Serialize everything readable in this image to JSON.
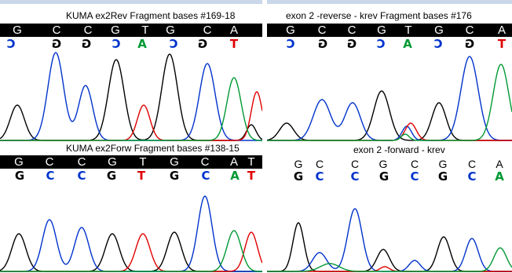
{
  "panels": {
    "top_left": {
      "title": "KUMA ex2Rev Fragment bases #169-18",
      "sequence": [
        "G",
        "C",
        "C",
        "G",
        "T",
        "G",
        "C",
        "A"
      ],
      "calls": [
        {
          "letter": "C",
          "color": "#0033cc",
          "flip": true
        },
        {
          "letter": "G",
          "color": "#000000",
          "flip": true
        },
        {
          "letter": "G",
          "color": "#000000",
          "flip": true
        },
        {
          "letter": "C",
          "color": "#0033cc",
          "flip": true
        },
        {
          "letter": "A",
          "color": "#009933",
          "flip": false
        },
        {
          "letter": "C",
          "color": "#0033cc",
          "flip": true
        },
        {
          "letter": "G",
          "color": "#000000",
          "flip": true
        },
        {
          "letter": "T",
          "color": "#e00000",
          "flip": false
        }
      ]
    },
    "top_right": {
      "title": "exon 2 -reverse - krev Fragment bases #176",
      "sequence": [
        "G",
        "C",
        "C",
        "G",
        "T",
        "G",
        "C",
        "A"
      ],
      "calls": [
        {
          "letter": "C",
          "color": "#0033cc",
          "flip": true
        },
        {
          "letter": "G",
          "color": "#000000",
          "flip": true
        },
        {
          "letter": "G",
          "color": "#000000",
          "flip": true
        },
        {
          "letter": "C",
          "color": "#0033cc",
          "flip": true
        },
        {
          "letter": "A",
          "color": "#009933",
          "flip": false
        },
        {
          "letter": "C",
          "color": "#0033cc",
          "flip": true
        },
        {
          "letter": "G",
          "color": "#000000",
          "flip": true
        },
        {
          "letter": "T",
          "color": "#e00000",
          "flip": false
        }
      ]
    },
    "bottom_left": {
      "title": "KUMA ex2Forw Fragment bases #138-15",
      "sequence": [
        "G",
        "C",
        "C",
        "G",
        "T",
        "G",
        "C",
        "A",
        "T"
      ],
      "calls": [
        {
          "letter": "G",
          "color": "#000000",
          "flip": false
        },
        {
          "letter": "C",
          "color": "#0033cc",
          "flip": false
        },
        {
          "letter": "C",
          "color": "#0033cc",
          "flip": false
        },
        {
          "letter": "G",
          "color": "#000000",
          "flip": false
        },
        {
          "letter": "T",
          "color": "#e00000",
          "flip": false
        },
        {
          "letter": "G",
          "color": "#000000",
          "flip": false
        },
        {
          "letter": "C",
          "color": "#0033cc",
          "flip": false
        },
        {
          "letter": "A",
          "color": "#009933",
          "flip": false
        },
        {
          "letter": "T",
          "color": "#e00000",
          "flip": false
        }
      ]
    },
    "bottom_right": {
      "title": "exon 2 -forward - krev",
      "sequence": [
        "G",
        "C",
        "C",
        "G",
        "C",
        "G",
        "C",
        "A"
      ],
      "calls": [
        {
          "letter": "G",
          "color": "#000000",
          "flip": false
        },
        {
          "letter": "C",
          "color": "#0033cc",
          "flip": false
        },
        {
          "letter": "C",
          "color": "#0033cc",
          "flip": false
        },
        {
          "letter": "G",
          "color": "#000000",
          "flip": false
        },
        {
          "letter": "C",
          "color": "#0033cc",
          "flip": false
        },
        {
          "letter": "G",
          "color": "#000000",
          "flip": false
        },
        {
          "letter": "C",
          "color": "#0033cc",
          "flip": false
        },
        {
          "letter": "A",
          "color": "#009933",
          "flip": false
        }
      ]
    }
  },
  "colors": {
    "A": "#009933",
    "C": "#0033cc",
    "G": "#000000",
    "T": "#e00000",
    "header_bar": "#c9d7e8"
  }
}
